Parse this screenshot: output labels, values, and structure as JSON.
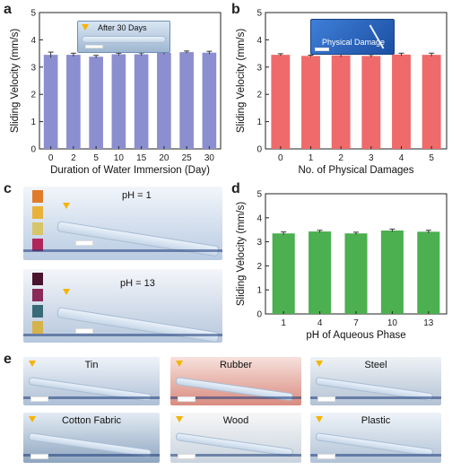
{
  "panels": {
    "a": {
      "letter": "a",
      "inset_label": "After 30 Days"
    },
    "b": {
      "letter": "b",
      "inset_label": "Physical Damage"
    },
    "c": {
      "letter": "c",
      "photo_labels": [
        "pH = 1",
        "pH = 13"
      ]
    },
    "d": {
      "letter": "d"
    },
    "e": {
      "letter": "e",
      "materials": [
        "Tin",
        "Rubber",
        "Steel",
        "Cotton Fabric",
        "Wood",
        "Plastic"
      ]
    }
  },
  "colors": {
    "a": "#8b8fd0",
    "b": "#ef6a6a",
    "d": "#4caf50",
    "marker": "#f4b400"
  },
  "chart_data": [
    {
      "id": "a",
      "type": "bar",
      "categories": [
        "0",
        "2",
        "5",
        "10",
        "15",
        "20",
        "25",
        "30"
      ],
      "values": [
        3.45,
        3.45,
        3.38,
        3.47,
        3.47,
        3.52,
        3.55,
        3.53
      ],
      "errors": [
        0.1,
        0.06,
        0.05,
        0.04,
        0.05,
        0.05,
        0.04,
        0.05
      ],
      "xlabel": "Duration of Water Immersion (Day)",
      "ylabel": "Sliding Velocity (mm/s)",
      "ylim": [
        0,
        5
      ],
      "yticks": [
        0,
        1,
        2,
        3,
        4,
        5
      ]
    },
    {
      "id": "b",
      "type": "bar",
      "categories": [
        "0",
        "1",
        "2",
        "3",
        "4",
        "5"
      ],
      "values": [
        3.45,
        3.41,
        3.43,
        3.41,
        3.46,
        3.45
      ],
      "errors": [
        0.04,
        0.03,
        0.06,
        0.05,
        0.05,
        0.06
      ],
      "xlabel": "No. of Physical Damages",
      "ylabel": "Sliding Velocity (mm/s)",
      "ylim": [
        0,
        5
      ],
      "yticks": [
        0,
        1,
        2,
        3,
        4,
        5
      ]
    },
    {
      "id": "d",
      "type": "bar",
      "categories": [
        "1",
        "4",
        "7",
        "10",
        "13"
      ],
      "values": [
        3.35,
        3.43,
        3.35,
        3.47,
        3.42
      ],
      "errors": [
        0.06,
        0.05,
        0.05,
        0.06,
        0.06
      ],
      "xlabel": "pH of Aqueous Phase",
      "ylabel": "Sliding Velocity (mm/s)",
      "ylim": [
        0,
        5
      ],
      "yticks": [
        0,
        1,
        2,
        3,
        4,
        5
      ]
    }
  ]
}
